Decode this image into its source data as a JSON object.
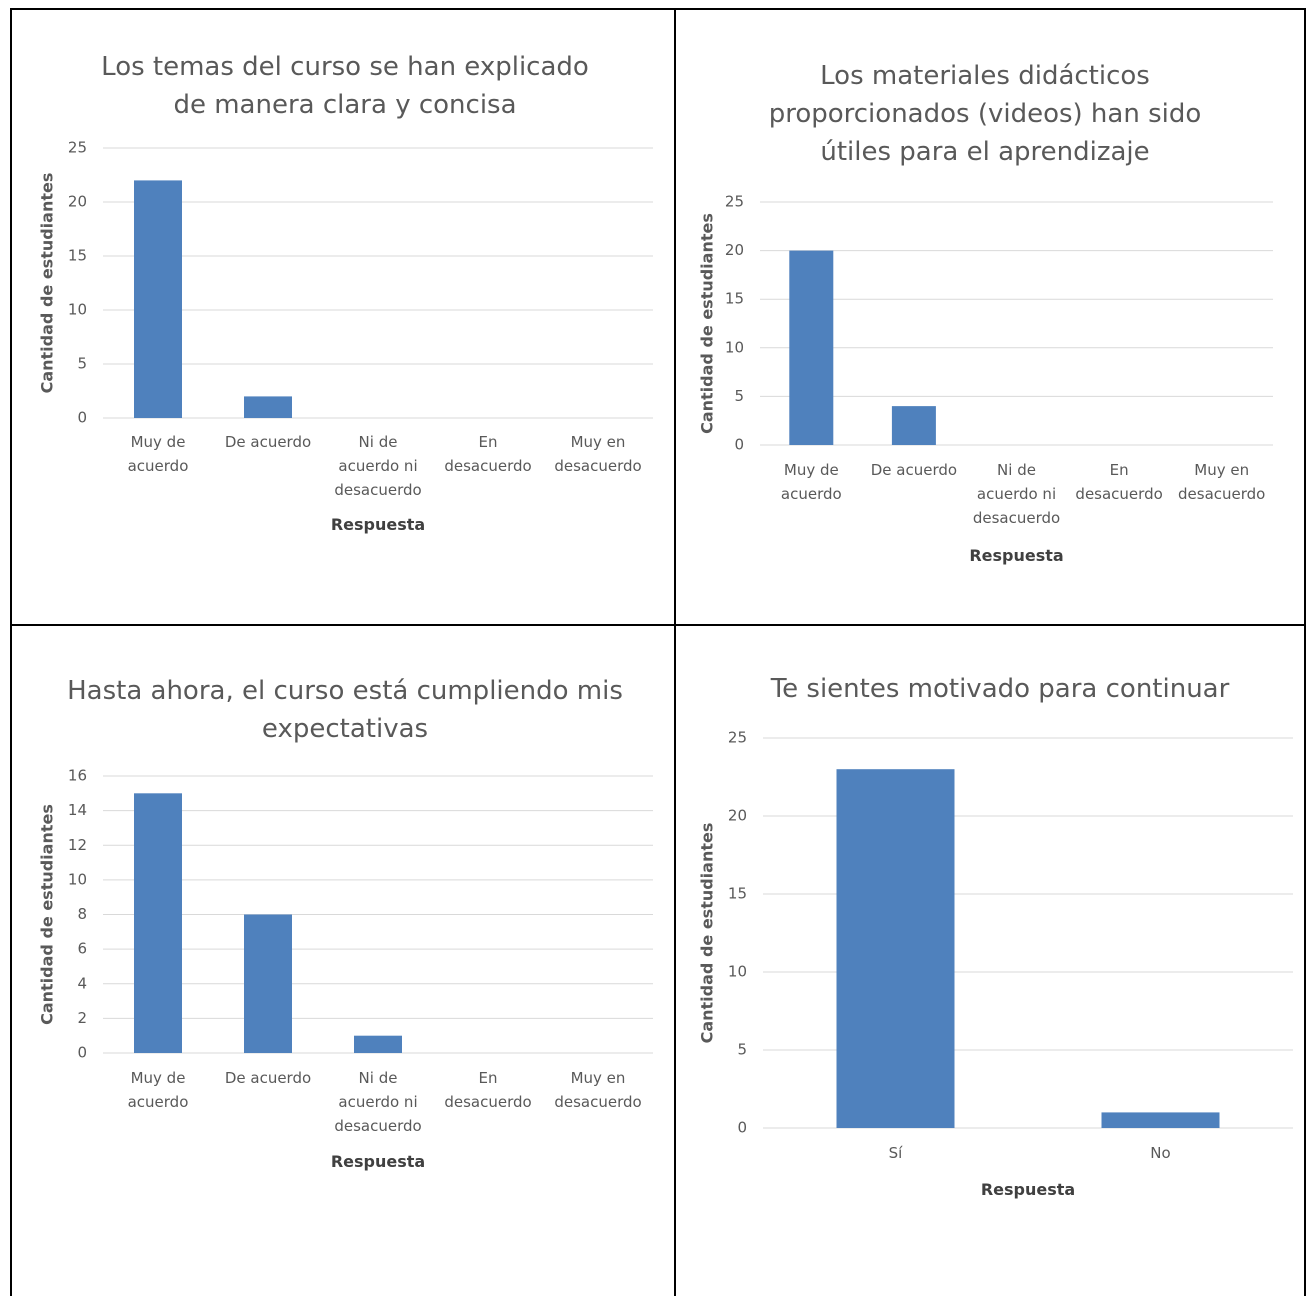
{
  "chart_data": [
    {
      "type": "bar",
      "title": "Los temas del curso se han explicado de manera clara y concisa",
      "x_label": "Respuesta",
      "y_label": "Cantidad de estudiantes",
      "categories": [
        "Muy de acuerdo",
        "De acuerdo",
        "Ni de acuerdo ni desacuerdo",
        "En desacuerdo",
        "Muy en desacuerdo"
      ],
      "values": [
        22,
        2,
        0,
        0,
        0
      ],
      "color": "#4f81bd",
      "ylim": [
        0,
        25
      ],
      "yticks": [
        0,
        5,
        10,
        15,
        20,
        25
      ],
      "grid": true
    },
    {
      "type": "bar",
      "title": "Los materiales didácticos proporcionados (videos) han sido útiles para el aprendizaje",
      "x_label": "Respuesta",
      "y_label": "Cantidad de estudiantes",
      "categories": [
        "Muy de acuerdo",
        "De acuerdo",
        "Ni de acuerdo ni desacuerdo",
        "En desacuerdo",
        "Muy en desacuerdo"
      ],
      "values": [
        20,
        4,
        0,
        0,
        0
      ],
      "color": "#4f81bd",
      "ylim": [
        0,
        25
      ],
      "yticks": [
        0,
        5,
        10,
        15,
        20,
        25
      ],
      "grid": true
    },
    {
      "type": "bar",
      "title": "Hasta ahora, el curso está cumpliendo mis expectativas",
      "x_label": "Respuesta",
      "y_label": "Cantidad de estudiantes",
      "categories": [
        "Muy de acuerdo",
        "De acuerdo",
        "Ni de acuerdo ni desacuerdo",
        "En desacuerdo",
        "Muy en desacuerdo"
      ],
      "values": [
        15,
        8,
        1,
        0,
        0
      ],
      "color": "#4f81bd",
      "ylim": [
        0,
        16
      ],
      "yticks": [
        0,
        2,
        4,
        6,
        8,
        10,
        12,
        14,
        16
      ],
      "grid": true
    },
    {
      "type": "bar",
      "title": "Te sientes motivado para continuar",
      "x_label": "Respuesta",
      "y_label": "Cantidad de estudiantes",
      "categories": [
        "Sí",
        "No"
      ],
      "values": [
        23,
        1
      ],
      "color": "#4f81bd",
      "ylim": [
        0,
        25
      ],
      "yticks": [
        0,
        5,
        10,
        15,
        20,
        25
      ],
      "grid": true
    }
  ]
}
